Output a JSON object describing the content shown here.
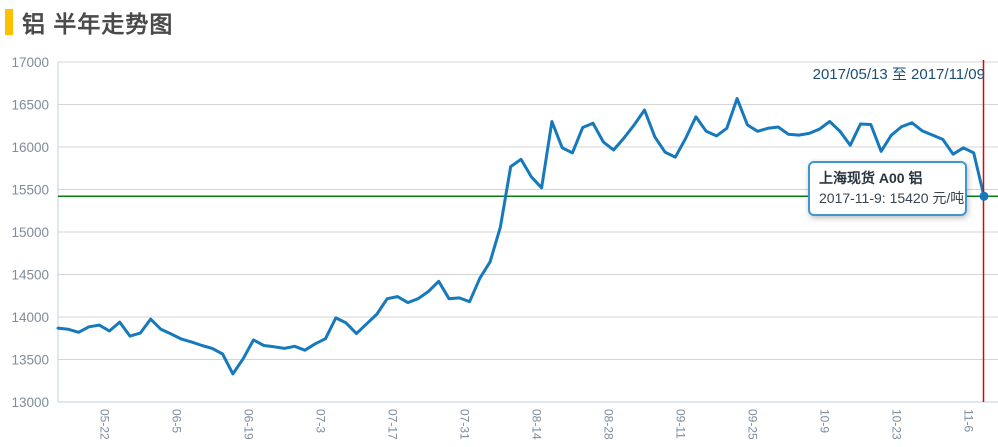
{
  "header": {
    "title": "铝 半年走势图",
    "accent_color": "#ffc000"
  },
  "chart": {
    "date_range": "2017/05/13 至 2017/11/09",
    "tooltip": {
      "title": "上海现货 A00 铝",
      "text": "2017-11-9: 15420 元/吨"
    }
  },
  "chart_data": {
    "type": "line",
    "title": "铝 半年走势图",
    "series_name": "上海现货 A00 铝",
    "unit": "元/吨",
    "date_start": "2017/05/13",
    "date_end": "2017/11/09",
    "ylim": [
      13000,
      17000
    ],
    "y_ticks": [
      17000,
      16500,
      16000,
      15500,
      15000,
      14500,
      14000,
      13500,
      13000
    ],
    "x_tick_labels": [
      "05-22",
      "06-5",
      "06-19",
      "07-3",
      "07-17",
      "07-31",
      "08-14",
      "08-28",
      "09-11",
      "09-25",
      "10-9",
      "10-23",
      "11-6"
    ],
    "x_tick_days": [
      9,
      23,
      37,
      51,
      65,
      79,
      93,
      107,
      121,
      135,
      149,
      163,
      177
    ],
    "total_days": 180,
    "grid": true,
    "values": [
      13870,
      13855,
      13820,
      13885,
      13905,
      13835,
      13940,
      13775,
      13810,
      13975,
      13855,
      13800,
      13740,
      13705,
      13665,
      13630,
      13565,
      13330,
      13510,
      13730,
      13665,
      13650,
      13630,
      13655,
      13610,
      13685,
      13745,
      13990,
      13930,
      13805,
      13920,
      14035,
      14215,
      14240,
      14170,
      14215,
      14300,
      14420,
      14215,
      14225,
      14180,
      14455,
      14650,
      15060,
      15770,
      15855,
      15650,
      15520,
      16300,
      15990,
      15930,
      16230,
      16280,
      16060,
      15965,
      16105,
      16260,
      16435,
      16120,
      15940,
      15880,
      16100,
      16355,
      16185,
      16130,
      16220,
      16570,
      16260,
      16185,
      16220,
      16235,
      16150,
      16140,
      16160,
      16210,
      16300,
      16185,
      16020,
      16270,
      16265,
      15950,
      16140,
      16240,
      16285,
      16190,
      16140,
      16090,
      15915,
      15990,
      15930,
      15420
    ],
    "last_point": {
      "date": "2017-11-9",
      "value": 15420
    },
    "reference_line_value": 15420,
    "colors": {
      "line": "#1679bc",
      "reference_line": "#0b7d0b",
      "marker_line": "#e60000",
      "grid": "#d4d4d4",
      "axis_border": "#bfd2e1",
      "axis_text": "#7e8c9c",
      "tooltip_border": "#3f97d0",
      "accent": "#ffc000"
    }
  }
}
